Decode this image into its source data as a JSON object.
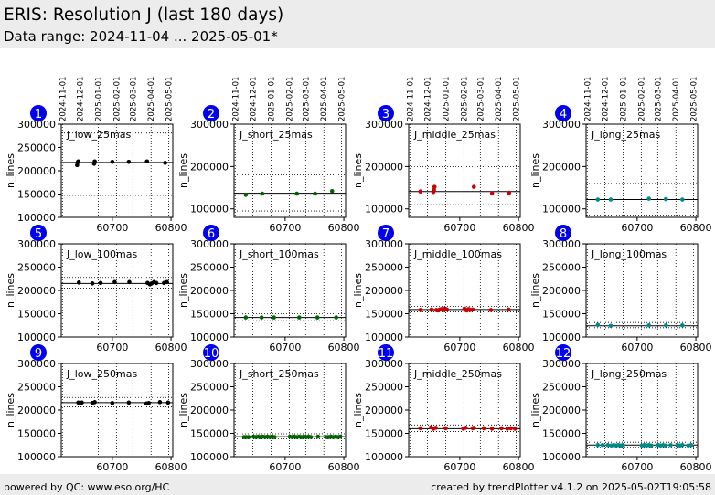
{
  "header": {
    "title": "ERIS: Resolution J (last 180 days)",
    "subtitle": "Data range: 2024-11-04 ... 2025-05-01*"
  },
  "footer": {
    "left": "powered by QC: www.eso.org/HC",
    "right": "created by trendPlotter v4.1.2 on 2025-05-02T19:05:58"
  },
  "date_ticks": [
    {
      "label": "2024-11-01",
      "mjd": 60615
    },
    {
      "label": "2024-12-01",
      "mjd": 60645
    },
    {
      "label": "2025-01-01",
      "mjd": 60676
    },
    {
      "label": "2025-02-01",
      "mjd": 60707
    },
    {
      "label": "2025-03-01",
      "mjd": 60735
    },
    {
      "label": "2025-04-01",
      "mjd": 60766
    },
    {
      "label": "2025-05-01",
      "mjd": 60796
    }
  ],
  "x_ticks": [
    60700,
    60800
  ],
  "x_range": [
    60613,
    60803
  ],
  "colors": {
    "low": "#000000",
    "short": "#006400",
    "middle": "#cc0000",
    "long": "#008b8b",
    "badge": "#0000ee"
  },
  "chart_data": [
    {
      "type": "scatter",
      "number": "1",
      "label": "J_low_25mas",
      "ylabel": "n_lines",
      "ylim": [
        100000,
        300000
      ],
      "yticks": [
        100000,
        150000,
        200000,
        250000,
        300000
      ],
      "color": "#000000",
      "ref_line": 218000,
      "limit_lines": [
        147000,
        281000
      ],
      "points": [
        [
          60640,
          212000
        ],
        [
          60641,
          218000
        ],
        [
          60642,
          220000
        ],
        [
          60669,
          215000
        ],
        [
          60670,
          220000
        ],
        [
          60700,
          219000
        ],
        [
          60728,
          219000
        ],
        [
          60759,
          220000
        ],
        [
          60790,
          217000
        ]
      ]
    },
    {
      "type": "scatter",
      "number": "2",
      "label": "J_short_25mas",
      "ylabel": "n_lines",
      "ylim": [
        80000,
        300000
      ],
      "yticks": [
        100000,
        200000,
        300000
      ],
      "color": "#006400",
      "ref_line": 137000,
      "limit_lines": [
        95000,
        180000
      ],
      "points": [
        [
          60633,
          133000
        ],
        [
          60661,
          136000
        ],
        [
          60720,
          136000
        ],
        [
          60751,
          136000
        ],
        [
          60780,
          142000
        ]
      ]
    },
    {
      "type": "scatter",
      "number": "3",
      "label": "J_middle_25mas",
      "ylabel": "n_lines",
      "ylim": [
        80000,
        300000
      ],
      "yticks": [
        100000,
        200000,
        300000
      ],
      "color": "#cc0000",
      "ref_line": 141000,
      "limit_lines": [
        110000,
        200000
      ],
      "points": [
        [
          60633,
          141000
        ],
        [
          60655,
          140000
        ],
        [
          60656,
          145000
        ],
        [
          60657,
          152000
        ],
        [
          60724,
          152000
        ],
        [
          60755,
          137000
        ],
        [
          60784,
          138000
        ]
      ]
    },
    {
      "type": "scatter",
      "number": "4",
      "label": "J_long_25mas",
      "ylabel": "n_lines",
      "ylim": [
        80000,
        300000
      ],
      "yticks": [
        100000,
        200000,
        300000
      ],
      "color": "#008b8b",
      "ref_line": 122000,
      "limit_lines": [
        85000,
        160000
      ],
      "points": [
        [
          60633,
          122000
        ],
        [
          60655,
          122000
        ],
        [
          60720,
          124000
        ],
        [
          60749,
          123000
        ],
        [
          60777,
          122000
        ]
      ]
    },
    {
      "type": "scatter",
      "number": "5",
      "label": "J_low_100mas",
      "ylabel": "n_lines",
      "ylim": [
        100000,
        300000
      ],
      "yticks": [
        100000,
        150000,
        200000,
        250000,
        300000
      ],
      "color": "#000000",
      "ref_line": 215000,
      "limit_lines": [
        205000,
        228000
      ],
      "points": [
        [
          60643,
          217000
        ],
        [
          60666,
          215000
        ],
        [
          60680,
          216000
        ],
        [
          60704,
          218000
        ],
        [
          60729,
          218000
        ],
        [
          60760,
          216000
        ],
        [
          60764,
          213000
        ],
        [
          60767,
          215000
        ],
        [
          60771,
          218000
        ],
        [
          60775,
          216000
        ],
        [
          60788,
          216000
        ],
        [
          60793,
          218000
        ]
      ]
    },
    {
      "type": "scatter",
      "number": "6",
      "label": "J_short_100mas",
      "ylabel": "n_lines",
      "ylim": [
        100000,
        300000
      ],
      "yticks": [
        100000,
        150000,
        200000,
        250000,
        300000
      ],
      "color": "#006400",
      "ref_line": 142000,
      "limit_lines": [
        135000,
        150000
      ],
      "points": [
        [
          60633,
          142000
        ],
        [
          60660,
          142000
        ],
        [
          60681,
          142000
        ],
        [
          60724,
          142000
        ],
        [
          60755,
          142000
        ],
        [
          60787,
          142000
        ]
      ]
    },
    {
      "type": "scatter",
      "number": "7",
      "label": "J_middle_100mas",
      "ylabel": "n_lines",
      "ylim": [
        100000,
        300000
      ],
      "yticks": [
        100000,
        150000,
        200000,
        250000,
        300000
      ],
      "color": "#cc0000",
      "ref_line": 159000,
      "limit_lines": [
        154000,
        166000
      ],
      "points": [
        [
          60633,
          158000
        ],
        [
          60652,
          159000
        ],
        [
          60660,
          158000
        ],
        [
          60663,
          157000
        ],
        [
          60666,
          159000
        ],
        [
          60669,
          160000
        ],
        [
          60672,
          158000
        ],
        [
          60675,
          161000
        ],
        [
          60678,
          159000
        ],
        [
          60708,
          161000
        ],
        [
          60710,
          158000
        ],
        [
          60712,
          157000
        ],
        [
          60715,
          160000
        ],
        [
          60718,
          158000
        ],
        [
          60722,
          159000
        ],
        [
          60753,
          158000
        ],
        [
          60783,
          159000
        ]
      ]
    },
    {
      "type": "scatter",
      "number": "8",
      "label": "J_long_100mas",
      "ylabel": "n_lines",
      "ylim": [
        100000,
        300000
      ],
      "yticks": [
        100000,
        150000,
        200000,
        250000,
        300000
      ],
      "color": "#008b8b",
      "ref_line": 124000,
      "limit_lines": [
        120000,
        131000
      ],
      "points": [
        [
          60633,
          126000
        ],
        [
          60655,
          124000
        ],
        [
          60720,
          125000
        ],
        [
          60749,
          125000
        ],
        [
          60777,
          125000
        ]
      ]
    },
    {
      "type": "scatter",
      "number": "9",
      "label": "J_low_250mas",
      "ylabel": "n_lines",
      "ylim": [
        100000,
        300000
      ],
      "yticks": [
        100000,
        150000,
        200000,
        250000,
        300000
      ],
      "color": "#000000",
      "ref_line": 216000,
      "limit_lines": [
        207000,
        227000
      ],
      "points": [
        [
          60642,
          216000
        ],
        [
          60648,
          216000
        ],
        [
          60666,
          215000
        ],
        [
          60670,
          217000
        ],
        [
          60700,
          215000
        ],
        [
          60728,
          216000
        ],
        [
          60758,
          214000
        ],
        [
          60762,
          215000
        ],
        [
          60781,
          217000
        ],
        [
          60795,
          216000
        ]
      ]
    },
    {
      "type": "scatter",
      "number": "10",
      "label": "J_short_250mas",
      "ylabel": "n_lines",
      "ylim": [
        100000,
        300000
      ],
      "yticks": [
        100000,
        150000,
        200000,
        250000,
        300000
      ],
      "color": "#006400",
      "ref_line": 143000,
      "limit_lines": [
        138000,
        149000
      ],
      "points": [
        [
          60630,
          142000
        ],
        [
          60634,
          142000
        ],
        [
          60638,
          142000
        ],
        [
          60646,
          143000
        ],
        [
          60650,
          142000
        ],
        [
          60654,
          143000
        ],
        [
          60658,
          142000
        ],
        [
          60662,
          143000
        ],
        [
          60666,
          142000
        ],
        [
          60670,
          143000
        ],
        [
          60674,
          142000
        ],
        [
          60678,
          143000
        ],
        [
          60682,
          142000
        ],
        [
          60708,
          143000
        ],
        [
          60712,
          142000
        ],
        [
          60716,
          143000
        ],
        [
          60720,
          142000
        ],
        [
          60724,
          143000
        ],
        [
          60728,
          142000
        ],
        [
          60732,
          143000
        ],
        [
          60736,
          142000
        ],
        [
          60740,
          143000
        ],
        [
          60744,
          142000
        ],
        [
          60756,
          143000
        ],
        [
          60770,
          142000
        ],
        [
          60774,
          142000
        ],
        [
          60778,
          143000
        ],
        [
          60782,
          142000
        ],
        [
          60786,
          143000
        ],
        [
          60790,
          142000
        ],
        [
          60794,
          143000
        ]
      ]
    },
    {
      "type": "scatter",
      "number": "11",
      "label": "J_middle_250mas",
      "ylabel": "n_lines",
      "ylim": [
        100000,
        300000
      ],
      "yticks": [
        100000,
        150000,
        200000,
        250000,
        300000
      ],
      "color": "#cc0000",
      "ref_line": 160000,
      "limit_lines": [
        154000,
        168000
      ],
      "points": [
        [
          60633,
          161000
        ],
        [
          60651,
          163000
        ],
        [
          60655,
          160000
        ],
        [
          60659,
          162000
        ],
        [
          60676,
          161000
        ],
        [
          60706,
          160000
        ],
        [
          60710,
          162000
        ],
        [
          60722,
          161000
        ],
        [
          60724,
          162000
        ],
        [
          60741,
          161000
        ],
        [
          60755,
          160000
        ],
        [
          60771,
          161000
        ],
        [
          60781,
          160000
        ],
        [
          60787,
          161000
        ],
        [
          60794,
          160000
        ]
      ]
    },
    {
      "type": "scatter",
      "number": "12",
      "label": "J_long_250mas",
      "ylabel": "n_lines",
      "ylim": [
        100000,
        300000
      ],
      "yticks": [
        100000,
        150000,
        200000,
        250000,
        300000
      ],
      "color": "#008b8b",
      "ref_line": 125000,
      "limit_lines": [
        120000,
        131000
      ],
      "points": [
        [
          60633,
          125000
        ],
        [
          60641,
          125000
        ],
        [
          60650,
          125000
        ],
        [
          60656,
          124000
        ],
        [
          60660,
          125000
        ],
        [
          60664,
          124000
        ],
        [
          60668,
          125000
        ],
        [
          60672,
          124000
        ],
        [
          60676,
          125000
        ],
        [
          60708,
          124000
        ],
        [
          60712,
          125000
        ],
        [
          60716,
          124000
        ],
        [
          60720,
          125000
        ],
        [
          60724,
          124000
        ],
        [
          60736,
          125000
        ],
        [
          60740,
          124000
        ],
        [
          60744,
          125000
        ],
        [
          60748,
          124000
        ],
        [
          60757,
          125000
        ],
        [
          60769,
          125000
        ],
        [
          60773,
          124000
        ],
        [
          60777,
          125000
        ],
        [
          60787,
          124000
        ],
        [
          60792,
          125000
        ]
      ]
    }
  ]
}
